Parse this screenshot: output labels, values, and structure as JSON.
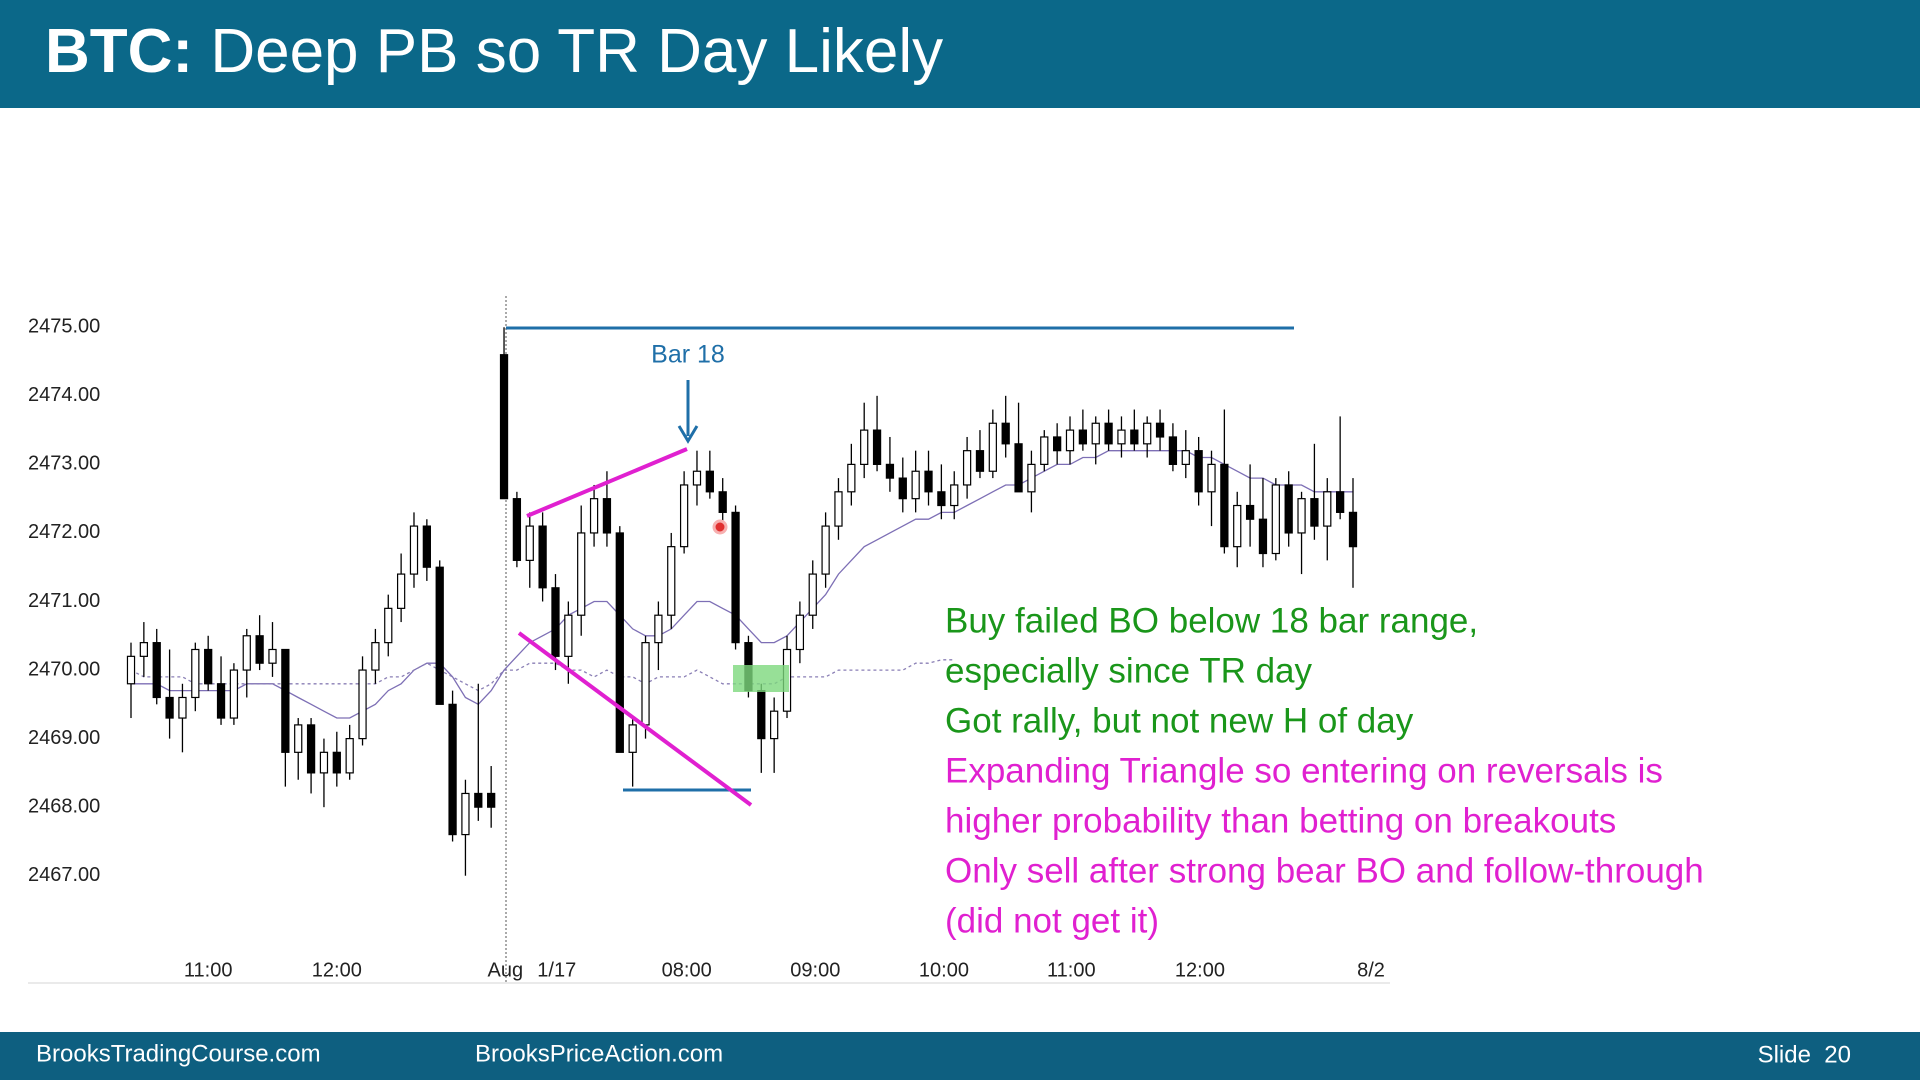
{
  "header": {
    "title_parts": [
      "BTC:",
      "Deep PB so TR Day Likely"
    ]
  },
  "footer": {
    "left": "BrooksTradingCourse.com",
    "center": "BrooksPriceAction.com",
    "right": "Slide  20"
  },
  "chart_data": {
    "type": "candlestick",
    "xlim": [
      0,
      95
    ],
    "ylim": [
      2466.5,
      2475.5
    ],
    "yticks": [
      {
        "value": 2475,
        "label": "2475.00"
      },
      {
        "value": 2474,
        "label": "2474.00"
      },
      {
        "value": 2473,
        "label": "2473.00"
      },
      {
        "value": 2472,
        "label": "2472.00"
      },
      {
        "value": 2471,
        "label": "2471.00"
      },
      {
        "value": 2470,
        "label": "2470.00"
      },
      {
        "value": 2469,
        "label": "2469.00"
      },
      {
        "value": 2468,
        "label": "2468.00"
      },
      {
        "value": 2467,
        "label": "2467.00"
      }
    ],
    "xticks": [
      {
        "value": 6,
        "label": "11:00"
      },
      {
        "value": 16,
        "label": "12:00"
      },
      {
        "value": 29.1,
        "label": "Aug"
      },
      {
        "value": 33.1,
        "label": "1/17"
      },
      {
        "value": 43.2,
        "label": "08:00"
      },
      {
        "value": 53.2,
        "label": "09:00"
      },
      {
        "value": 63.2,
        "label": "10:00"
      },
      {
        "value": 73.1,
        "label": "11:00"
      },
      {
        "value": 83.1,
        "label": "12:00"
      },
      {
        "value": 96.4,
        "label": "8/2"
      }
    ],
    "bull_color": "#ffffff",
    "bear_color": "#000000",
    "candles": [
      [
        2469.8,
        2470.4,
        2469.3,
        2470.2
      ],
      [
        2470.2,
        2470.7,
        2469.9,
        2470.4
      ],
      [
        2470.4,
        2470.6,
        2469.5,
        2469.6
      ],
      [
        2469.6,
        2470.3,
        2469.0,
        2469.3
      ],
      [
        2469.3,
        2469.8,
        2468.8,
        2469.6
      ],
      [
        2469.6,
        2470.4,
        2469.4,
        2470.3
      ],
      [
        2470.3,
        2470.5,
        2469.7,
        2469.8
      ],
      [
        2469.8,
        2470.2,
        2469.2,
        2469.3
      ],
      [
        2469.3,
        2470.1,
        2469.2,
        2470.0
      ],
      [
        2470.0,
        2470.6,
        2469.6,
        2470.5
      ],
      [
        2470.5,
        2470.8,
        2470.0,
        2470.1
      ],
      [
        2470.1,
        2470.7,
        2469.9,
        2470.3
      ],
      [
        2470.3,
        2470.3,
        2468.3,
        2468.8
      ],
      [
        2468.8,
        2469.3,
        2468.4,
        2469.2
      ],
      [
        2469.2,
        2469.3,
        2468.2,
        2468.5
      ],
      [
        2468.5,
        2469.0,
        2468.0,
        2468.8
      ],
      [
        2468.8,
        2469.1,
        2468.3,
        2468.5
      ],
      [
        2468.5,
        2469.2,
        2468.4,
        2469.0
      ],
      [
        2469.0,
        2470.2,
        2468.9,
        2470.0
      ],
      [
        2470.0,
        2470.6,
        2469.8,
        2470.4
      ],
      [
        2470.4,
        2471.1,
        2470.2,
        2470.9
      ],
      [
        2470.9,
        2471.7,
        2470.7,
        2471.4
      ],
      [
        2471.4,
        2472.3,
        2471.2,
        2472.1
      ],
      [
        2472.1,
        2472.2,
        2471.3,
        2471.5
      ],
      [
        2471.5,
        2471.6,
        2469.5,
        2469.5
      ],
      [
        2469.5,
        2469.7,
        2467.5,
        2467.6
      ],
      [
        2467.6,
        2468.4,
        2467.0,
        2468.2
      ],
      [
        2468.2,
        2469.8,
        2467.8,
        2468.0
      ],
      [
        2468.2,
        2468.6,
        2467.7,
        2468.0
      ],
      [
        2474.6,
        2475.0,
        2472.5,
        2472.5
      ],
      [
        2472.5,
        2472.6,
        2471.5,
        2471.6
      ],
      [
        2471.6,
        2472.3,
        2471.2,
        2472.1
      ],
      [
        2472.1,
        2472.3,
        2471.0,
        2471.2
      ],
      [
        2471.2,
        2471.4,
        2470.0,
        2470.2
      ],
      [
        2470.2,
        2471.0,
        2469.8,
        2470.8
      ],
      [
        2470.8,
        2472.4,
        2470.5,
        2472.0
      ],
      [
        2472.0,
        2472.7,
        2471.8,
        2472.5
      ],
      [
        2472.5,
        2472.9,
        2471.8,
        2472.0
      ],
      [
        2472.0,
        2472.1,
        2468.8,
        2468.8
      ],
      [
        2468.8,
        2469.3,
        2468.3,
        2469.2
      ],
      [
        2469.2,
        2470.5,
        2469.0,
        2470.4
      ],
      [
        2470.4,
        2471.0,
        2470.0,
        2470.8
      ],
      [
        2470.8,
        2472.0,
        2470.6,
        2471.8
      ],
      [
        2471.8,
        2472.9,
        2471.7,
        2472.7
      ],
      [
        2472.7,
        2473.2,
        2472.4,
        2472.9
      ],
      [
        2472.9,
        2473.2,
        2472.5,
        2472.6
      ],
      [
        2472.6,
        2472.8,
        2472.1,
        2472.3
      ],
      [
        2472.3,
        2472.4,
        2470.3,
        2470.4
      ],
      [
        2470.4,
        2470.5,
        2469.6,
        2469.7
      ],
      [
        2469.7,
        2469.8,
        2468.5,
        2469.0
      ],
      [
        2469.0,
        2469.6,
        2468.5,
        2469.4
      ],
      [
        2469.4,
        2470.5,
        2469.3,
        2470.3
      ],
      [
        2470.3,
        2471.0,
        2470.1,
        2470.8
      ],
      [
        2470.8,
        2471.6,
        2470.6,
        2471.4
      ],
      [
        2471.4,
        2472.3,
        2471.2,
        2472.1
      ],
      [
        2472.1,
        2472.8,
        2471.9,
        2472.6
      ],
      [
        2472.6,
        2473.3,
        2472.4,
        2473.0
      ],
      [
        2473.0,
        2473.9,
        2472.8,
        2473.5
      ],
      [
        2473.5,
        2474.0,
        2472.9,
        2473.0
      ],
      [
        2473.0,
        2473.4,
        2472.6,
        2472.8
      ],
      [
        2472.8,
        2473.1,
        2472.3,
        2472.5
      ],
      [
        2472.5,
        2473.2,
        2472.3,
        2472.9
      ],
      [
        2472.9,
        2473.2,
        2472.4,
        2472.6
      ],
      [
        2472.6,
        2473.0,
        2472.2,
        2472.4
      ],
      [
        2472.4,
        2472.9,
        2472.2,
        2472.7
      ],
      [
        2472.7,
        2473.4,
        2472.5,
        2473.2
      ],
      [
        2473.2,
        2473.5,
        2472.8,
        2472.9
      ],
      [
        2472.9,
        2473.8,
        2472.8,
        2473.6
      ],
      [
        2473.6,
        2474.0,
        2473.1,
        2473.3
      ],
      [
        2473.3,
        2473.9,
        2472.6,
        2472.6
      ],
      [
        2472.6,
        2473.2,
        2472.3,
        2473.0
      ],
      [
        2473.0,
        2473.5,
        2472.9,
        2473.4
      ],
      [
        2473.4,
        2473.6,
        2473.0,
        2473.2
      ],
      [
        2473.2,
        2473.7,
        2473.0,
        2473.5
      ],
      [
        2473.5,
        2473.8,
        2473.2,
        2473.3
      ],
      [
        2473.3,
        2473.7,
        2473.0,
        2473.6
      ],
      [
        2473.6,
        2473.8,
        2473.2,
        2473.3
      ],
      [
        2473.3,
        2473.7,
        2473.1,
        2473.5
      ],
      [
        2473.5,
        2473.8,
        2473.2,
        2473.3
      ],
      [
        2473.3,
        2473.7,
        2473.1,
        2473.6
      ],
      [
        2473.6,
        2473.8,
        2473.2,
        2473.4
      ],
      [
        2473.4,
        2473.6,
        2472.9,
        2473.0
      ],
      [
        2473.0,
        2473.5,
        2472.8,
        2473.2
      ],
      [
        2473.2,
        2473.4,
        2472.4,
        2472.6
      ],
      [
        2472.6,
        2473.2,
        2472.1,
        2473.0
      ],
      [
        2473.0,
        2473.8,
        2471.7,
        2471.8
      ],
      [
        2471.8,
        2472.6,
        2471.5,
        2472.4
      ],
      [
        2472.4,
        2473.0,
        2471.8,
        2472.2
      ],
      [
        2472.2,
        2472.8,
        2471.5,
        2471.7
      ],
      [
        2471.7,
        2472.8,
        2471.6,
        2472.7
      ],
      [
        2472.7,
        2472.9,
        2471.8,
        2472.0
      ],
      [
        2472.0,
        2472.6,
        2471.4,
        2472.5
      ],
      [
        2472.5,
        2473.3,
        2471.9,
        2472.1
      ],
      [
        2472.1,
        2472.8,
        2471.6,
        2472.6
      ],
      [
        2472.6,
        2473.7,
        2472.2,
        2472.3
      ],
      [
        2472.3,
        2472.8,
        2471.2,
        2471.8
      ]
    ],
    "series": [
      {
        "color": "#7d6fb5",
        "dashed": false,
        "values": [
          2469.8,
          2469.8,
          2469.8,
          2469.7,
          2469.7,
          2469.7,
          2469.7,
          2469.7,
          2469.7,
          2469.8,
          2469.8,
          2469.8,
          2469.7,
          2469.6,
          2469.5,
          2469.4,
          2469.3,
          2469.3,
          2469.4,
          2469.5,
          2469.7,
          2469.8,
          2470.0,
          2470.1,
          2470.1,
          2469.9,
          2469.6,
          2469.5,
          2469.7,
          2470.0,
          2470.2,
          2470.4,
          2470.5,
          2470.6,
          2470.8,
          2470.9,
          2471.0,
          2471.0,
          2470.8,
          2470.6,
          2470.5,
          2470.5,
          2470.6,
          2470.8,
          2471.0,
          2471.0,
          2470.9,
          2470.8,
          2470.6,
          2470.4,
          2470.4,
          2470.5,
          2470.7,
          2470.9,
          2471.1,
          2471.4,
          2471.6,
          2471.8,
          2471.9,
          2472.0,
          2472.1,
          2472.2,
          2472.2,
          2472.3,
          2472.3,
          2472.4,
          2472.5,
          2472.6,
          2472.7,
          2472.7,
          2472.8,
          2472.9,
          2473.0,
          2473.0,
          2473.1,
          2473.1,
          2473.2,
          2473.2,
          2473.2,
          2473.2,
          2473.2,
          2473.2,
          2473.2,
          2473.1,
          2473.1,
          2473.0,
          2472.9,
          2472.8,
          2472.8,
          2472.7,
          2472.7,
          2472.7,
          2472.6,
          2472.6,
          2472.6,
          2472.6
        ]
      },
      {
        "color": "#8a7fb5",
        "dashed": true,
        "values": [
          2470.0,
          2469.9,
          2469.9,
          2469.9,
          2469.9,
          2469.8,
          2469.8,
          2469.8,
          2469.8,
          2469.8,
          2469.8,
          2469.8,
          2469.8,
          2469.8,
          2469.8,
          2469.8,
          2469.8,
          2469.8,
          2469.8,
          2469.8,
          2469.9,
          2469.9,
          2470.0,
          2470.1,
          2470.0,
          2469.9,
          2469.8,
          2469.7,
          2469.8,
          2470.0,
          2470.0,
          2470.1,
          2470.1,
          2470.1,
          2470.0,
          2470.0,
          2469.9,
          2470.0,
          2469.9,
          2469.9,
          2469.8,
          2469.9,
          2469.9,
          2469.9,
          2470.0,
          2469.9,
          2469.8,
          2469.8,
          2469.8,
          2469.8,
          2469.8,
          2469.9,
          2469.9,
          2469.9,
          2469.9,
          2470.0,
          2470.0,
          2470.0,
          2470.0,
          2470.0,
          2470.0,
          2470.1,
          2470.1,
          2470.15,
          2470.15,
          null,
          null,
          null,
          null,
          null,
          null,
          null,
          null,
          null,
          null,
          null,
          null,
          null,
          null,
          null,
          null,
          null,
          null,
          null,
          null,
          null,
          null,
          null,
          null,
          null,
          null,
          null,
          null,
          null,
          null,
          null
        ]
      }
    ],
    "bar_label": "Bar 18",
    "notes": [
      {
        "text": "Buy failed BO below 18 bar range,",
        "color": "#1a961a"
      },
      {
        "text": "especially since TR day",
        "color": "#1a961a"
      },
      {
        "text": "Got rally, but not new H of day",
        "color": "#1a961a"
      },
      {
        "text": "Expanding Triangle so entering on reversals is",
        "color": "#e020d0"
      },
      {
        "text": "higher probability than betting on breakouts",
        "color": "#e020d0"
      },
      {
        "text": "Only sell after strong bear BO and follow-through",
        "color": "#e020d0"
      },
      {
        "text": "(did not get it)",
        "color": "#e020d0"
      }
    ]
  }
}
